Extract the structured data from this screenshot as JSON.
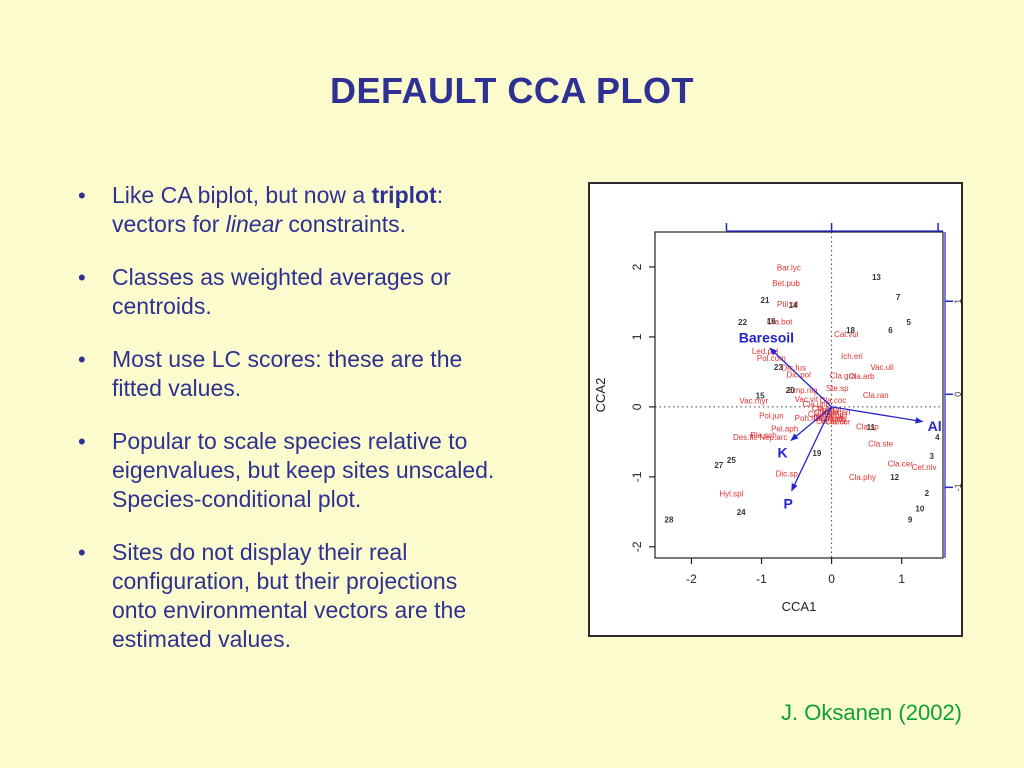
{
  "slide": {
    "title": "DEFAULT CCA PLOT",
    "attribution": "J. Oksanen (2002)",
    "colors": {
      "background": "#FBFBCD",
      "body_text": "#2E3192",
      "attribution_green": "#0E9F38"
    }
  },
  "bullets": [
    {
      "lines": [
        [
          {
            "t": "Like CA biplot, but now a "
          },
          {
            "t": "triplot",
            "b": true
          },
          {
            "t": ":"
          }
        ],
        [
          {
            "t": "vectors for "
          },
          {
            "t": "linear",
            "i": true
          },
          {
            "t": " constraints."
          }
        ]
      ]
    },
    {
      "lines": [
        [
          {
            "t": "Classes as weighted averages or"
          }
        ],
        [
          {
            "t": "centroids."
          }
        ]
      ]
    },
    {
      "lines": [
        [
          {
            "t": "Most use LC scores: these are the"
          }
        ],
        [
          {
            "t": "fitted values."
          }
        ]
      ]
    },
    {
      "lines": [
        [
          {
            "t": "Popular to scale species relative to"
          }
        ],
        [
          {
            "t": "eigenvalues, but keep sites unscaled."
          }
        ],
        [
          {
            "t": "Species-conditional plot."
          }
        ]
      ]
    },
    {
      "lines": [
        [
          {
            "t": "Sites do not display their real"
          }
        ],
        [
          {
            "t": "configuration, but their projections"
          }
        ],
        [
          {
            "t": "onto environmental vectors are the"
          }
        ],
        [
          {
            "t": "estimated values."
          }
        ]
      ]
    }
  ],
  "chart_data": {
    "type": "scatter",
    "subtype": "cca-triplot",
    "title": "",
    "xlabel": "CCA1",
    "ylabel": "CCA2",
    "xlim": [
      -2.52,
      1.59
    ],
    "ylim": [
      -2.16,
      2.5
    ],
    "x_ticks": [
      -2,
      -1,
      0,
      1
    ],
    "y_ticks": [
      -2,
      -1,
      0,
      1,
      2
    ],
    "top_axis": {
      "ticks": [
        -1.5,
        0,
        1.52
      ],
      "labels": []
    },
    "right_axis": {
      "ticks": [
        1.51,
        0.18,
        -1.15
      ],
      "labels": [
        "1",
        "0",
        "-1"
      ]
    },
    "reference_lines": {
      "h": 0,
      "v": 0,
      "style": "dotted"
    },
    "colors": {
      "species": "#E03333",
      "sites": "#333333",
      "biplot": "#2525CC",
      "frame": "#222222"
    },
    "arrows": [
      {
        "label": "Baresoil",
        "x": -0.88,
        "y": 0.84,
        "lx": -0.93,
        "ly": 0.99
      },
      {
        "label": "Al",
        "x": 1.3,
        "y": -0.21,
        "lx": 1.47,
        "ly": -0.27
      },
      {
        "label": "K",
        "x": -0.58,
        "y": -0.48,
        "lx": -0.7,
        "ly": -0.65
      },
      {
        "label": "P",
        "x": -0.57,
        "y": -1.2,
        "lx": -0.62,
        "ly": -1.38
      }
    ],
    "species": [
      {
        "label": "Bar.lyc",
        "x": -0.61,
        "y": 1.99
      },
      {
        "label": "Bet.pub",
        "x": -0.65,
        "y": 1.77
      },
      {
        "label": "Ptil.cil",
        "x": -0.63,
        "y": 1.47
      },
      {
        "label": "Cla.bot",
        "x": -0.74,
        "y": 1.22
      },
      {
        "label": "Cal.vul",
        "x": 0.21,
        "y": 1.04
      },
      {
        "label": "Led.pal",
        "x": -0.95,
        "y": 0.8
      },
      {
        "label": "Pol.com",
        "x": -0.86,
        "y": 0.7
      },
      {
        "label": "Ich.eri",
        "x": 0.29,
        "y": 0.73
      },
      {
        "label": "Vac.uli",
        "x": 0.72,
        "y": 0.57
      },
      {
        "label": "Dic.fus",
        "x": -0.54,
        "y": 0.56
      },
      {
        "label": "Dic.pol",
        "x": -0.47,
        "y": 0.46
      },
      {
        "label": "Cla.arb",
        "x": 0.43,
        "y": 0.44
      },
      {
        "label": "Cla.gra",
        "x": 0.16,
        "y": 0.45
      },
      {
        "label": "Ste.sp",
        "x": 0.08,
        "y": 0.27
      },
      {
        "label": "Emp.nig",
        "x": -0.41,
        "y": 0.24
      },
      {
        "label": "Cla.ran",
        "x": 0.63,
        "y": 0.17
      },
      {
        "label": "Vac.vit",
        "x": -0.36,
        "y": 0.11
      },
      {
        "label": "Cla.coc",
        "x": 0.02,
        "y": 0.1
      },
      {
        "label": "Vac.myr",
        "x": -1.11,
        "y": 0.09
      },
      {
        "label": "Cla.unc",
        "x": -0.22,
        "y": 0.04
      },
      {
        "label": "Cla.cri",
        "x": -0.12,
        "y": -0.02
      },
      {
        "label": "Pin.syl",
        "x": -0.03,
        "y": -0.04
      },
      {
        "label": "Cla.def",
        "x": -0.07,
        "y": -0.08
      },
      {
        "label": "Cet.eri",
        "x": 0.1,
        "y": -0.07
      },
      {
        "label": "Cla.fim",
        "x": -0.16,
        "y": -0.1
      },
      {
        "label": "Pol.pil",
        "x": 0.01,
        "y": -0.11
      },
      {
        "label": "Cet.isl",
        "x": 0.06,
        "y": -0.13
      },
      {
        "label": "Dip.mon",
        "x": -0.05,
        "y": -0.16
      },
      {
        "label": "Cla.chl",
        "x": 0.04,
        "y": -0.17
      },
      {
        "label": "Cla.ama",
        "x": -0.01,
        "y": -0.2
      },
      {
        "label": "Cla.cor",
        "x": 0.09,
        "y": -0.21
      },
      {
        "label": "Pol.jun",
        "x": -0.86,
        "y": -0.12
      },
      {
        "label": "Poh.nut",
        "x": -0.33,
        "y": -0.16
      },
      {
        "label": "Pel.aph",
        "x": -0.67,
        "y": -0.31
      },
      {
        "label": "Ple.sch",
        "x": -0.97,
        "y": -0.4
      },
      {
        "label": "Nep.arc",
        "x": -0.83,
        "y": -0.43
      },
      {
        "label": "Des.fle",
        "x": -1.23,
        "y": -0.43
      },
      {
        "label": "Cla.sp",
        "x": 0.51,
        "y": -0.28
      },
      {
        "label": "Cla.ste",
        "x": 0.7,
        "y": -0.52
      },
      {
        "label": "Dic.sp",
        "x": -0.64,
        "y": -0.95
      },
      {
        "label": "Cla.cer",
        "x": 0.98,
        "y": -0.81
      },
      {
        "label": "Cet.niv",
        "x": 1.32,
        "y": -0.86
      },
      {
        "label": "Cla.phy",
        "x": 0.44,
        "y": -1.0
      },
      {
        "label": "Hyl.spl",
        "x": -1.43,
        "y": -1.24
      }
    ],
    "sites": [
      {
        "label": "2",
        "x": 1.36,
        "y": -1.23
      },
      {
        "label": "3",
        "x": 1.43,
        "y": -0.7
      },
      {
        "label": "4",
        "x": 1.51,
        "y": -0.43
      },
      {
        "label": "5",
        "x": 1.1,
        "y": 1.21
      },
      {
        "label": "6",
        "x": 0.84,
        "y": 1.1
      },
      {
        "label": "7",
        "x": 0.95,
        "y": 1.57
      },
      {
        "label": "9",
        "x": 1.12,
        "y": -1.61
      },
      {
        "label": "10",
        "x": 1.26,
        "y": -1.45
      },
      {
        "label": "11",
        "x": 0.56,
        "y": -0.29
      },
      {
        "label": "12",
        "x": 0.9,
        "y": -1.0
      },
      {
        "label": "13",
        "x": 0.64,
        "y": 1.86
      },
      {
        "label": "14",
        "x": -0.55,
        "y": 1.46
      },
      {
        "label": "15",
        "x": -1.02,
        "y": 0.16
      },
      {
        "label": "16",
        "x": -0.86,
        "y": 1.23
      },
      {
        "label": "18",
        "x": 0.27,
        "y": 1.1
      },
      {
        "label": "19",
        "x": -0.21,
        "y": -0.66
      },
      {
        "label": "20",
        "x": -0.59,
        "y": 0.24
      },
      {
        "label": "21",
        "x": -0.95,
        "y": 1.53
      },
      {
        "label": "22",
        "x": -1.27,
        "y": 1.21
      },
      {
        "label": "23",
        "x": -0.76,
        "y": 0.57
      },
      {
        "label": "24",
        "x": -1.29,
        "y": -1.5
      },
      {
        "label": "25",
        "x": -1.43,
        "y": -0.76
      },
      {
        "label": "27",
        "x": -1.61,
        "y": -0.83
      },
      {
        "label": "28",
        "x": -2.32,
        "y": -1.61
      }
    ]
  }
}
